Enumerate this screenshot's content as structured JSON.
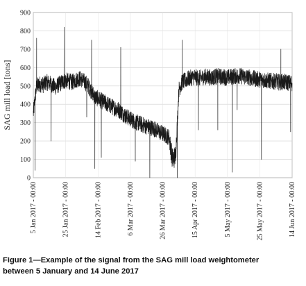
{
  "chart_data": {
    "type": "line",
    "title": "",
    "xlabel": "",
    "ylabel": "SAG mill load [tons]",
    "ylim": [
      0,
      900
    ],
    "yticks": [
      0,
      100,
      200,
      300,
      400,
      500,
      600,
      700,
      800,
      900
    ],
    "xlim": [
      "2017-01-05",
      "2017-06-14"
    ],
    "xticks": [
      {
        "date": "2017-01-05",
        "label": "5 Jan 2017 - 00:00"
      },
      {
        "date": "2017-01-25",
        "label": "25 Jan 2017 - 00:00"
      },
      {
        "date": "2017-02-14",
        "label": "14 Feb 2017 - 00:00"
      },
      {
        "date": "2017-03-06",
        "label": "6 Mar 2017 - 00:00"
      },
      {
        "date": "2017-03-26",
        "label": "26 Mar 2017 - 00:00"
      },
      {
        "date": "2017-04-15",
        "label": "15 Apr 2017 - 00:00"
      },
      {
        "date": "2017-05-05",
        "label": "5 May 2017 - 00:00"
      },
      {
        "date": "2017-05-25",
        "label": "25 May 2017 - 00:00"
      },
      {
        "date": "2017-06-14",
        "label": "14 Jun 2017 - 00:00"
      }
    ],
    "grid": true,
    "line_color": "#1a1a1a",
    "series": [
      {
        "x": [
          "2017-01-05",
          "2017-01-07",
          "2017-01-09",
          "2017-01-11",
          "2017-01-13",
          "2017-01-15",
          "2017-01-17",
          "2017-01-19",
          "2017-01-21",
          "2017-01-23",
          "2017-01-25",
          "2017-01-27",
          "2017-01-29",
          "2017-01-31",
          "2017-02-02",
          "2017-02-04",
          "2017-02-06",
          "2017-02-08",
          "2017-02-10",
          "2017-02-12",
          "2017-02-14",
          "2017-02-16",
          "2017-02-18",
          "2017-02-20",
          "2017-02-22",
          "2017-02-24",
          "2017-02-26",
          "2017-02-28",
          "2017-03-02",
          "2017-03-04",
          "2017-03-06",
          "2017-03-08",
          "2017-03-10",
          "2017-03-12",
          "2017-03-14",
          "2017-03-16",
          "2017-03-18",
          "2017-03-20",
          "2017-03-22",
          "2017-03-24",
          "2017-03-26",
          "2017-03-28",
          "2017-03-30",
          "2017-04-01",
          "2017-04-03",
          "2017-04-05",
          "2017-04-07",
          "2017-04-09",
          "2017-04-11",
          "2017-04-13",
          "2017-04-15",
          "2017-04-17",
          "2017-04-19",
          "2017-04-21",
          "2017-04-23",
          "2017-04-25",
          "2017-04-27",
          "2017-04-29",
          "2017-05-01",
          "2017-05-03",
          "2017-05-05",
          "2017-05-07",
          "2017-05-09",
          "2017-05-11",
          "2017-05-13",
          "2017-05-15",
          "2017-05-17",
          "2017-05-19",
          "2017-05-21",
          "2017-05-23",
          "2017-05-25",
          "2017-05-27",
          "2017-05-29",
          "2017-05-31",
          "2017-06-02",
          "2017-06-04",
          "2017-06-06",
          "2017-06-08",
          "2017-06-10",
          "2017-06-12",
          "2017-06-14"
        ],
        "y": [
          350,
          500,
          510,
          505,
          520,
          515,
          500,
          495,
          510,
          520,
          530,
          525,
          520,
          530,
          540,
          535,
          520,
          500,
          470,
          440,
          430,
          420,
          410,
          400,
          390,
          380,
          375,
          360,
          345,
          330,
          320,
          310,
          300,
          295,
          285,
          280,
          275,
          270,
          260,
          250,
          240,
          230,
          220,
          100,
          120,
          480,
          520,
          530,
          540,
          545,
          550,
          540,
          545,
          550,
          548,
          545,
          550,
          552,
          550,
          548,
          545,
          550,
          552,
          555,
          555,
          550,
          548,
          545,
          540,
          538,
          535,
          533,
          530,
          528,
          525,
          525,
          520,
          522,
          520,
          518,
          515
        ]
      }
    ],
    "spikes": [
      {
        "x": "2017-01-06",
        "y": 40
      },
      {
        "x": "2017-01-07",
        "y": 760
      },
      {
        "x": "2017-01-16",
        "y": 200
      },
      {
        "x": "2017-01-24",
        "y": 820
      },
      {
        "x": "2017-02-07",
        "y": 330
      },
      {
        "x": "2017-02-10",
        "y": 750
      },
      {
        "x": "2017-02-12",
        "y": 50
      },
      {
        "x": "2017-02-16",
        "y": 110
      },
      {
        "x": "2017-02-28",
        "y": 710
      },
      {
        "x": "2017-03-09",
        "y": 90
      },
      {
        "x": "2017-03-18",
        "y": 0
      },
      {
        "x": "2017-04-04",
        "y": 0
      },
      {
        "x": "2017-04-07",
        "y": 750
      },
      {
        "x": "2017-04-17",
        "y": 260
      },
      {
        "x": "2017-04-29",
        "y": 260
      },
      {
        "x": "2017-05-08",
        "y": 30
      },
      {
        "x": "2017-05-11",
        "y": 370
      },
      {
        "x": "2017-05-26",
        "y": 100
      },
      {
        "x": "2017-06-07",
        "y": 700
      },
      {
        "x": "2017-06-13",
        "y": 250
      }
    ]
  },
  "caption": {
    "line1": "Figure 1—Example of the signal from the SAG mill load weightometer",
    "line2": "between 5 January and 14 June 2017"
  }
}
